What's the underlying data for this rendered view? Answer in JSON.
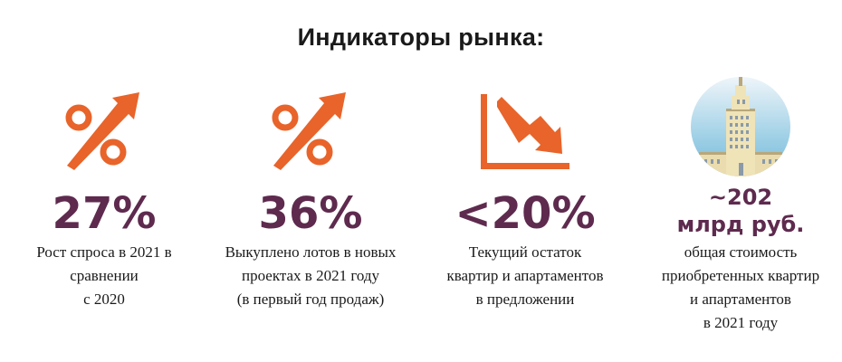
{
  "title": "Индикаторы  рынка:",
  "colors": {
    "accent": "#e8642a",
    "value": "#5e2a4e"
  },
  "indicators": [
    {
      "icon": "percent-up-arrow-icon",
      "value": "27%",
      "desc": [
        "Рост спроса в 2021 в",
        "сравнении",
        "с 2020"
      ]
    },
    {
      "icon": "percent-up-arrow-icon",
      "value": "36%",
      "desc": [
        "Выкуплено лотов в новых",
        "проектах в 2021 году",
        "(в первый год продаж)"
      ]
    },
    {
      "icon": "chart-down-arrow-icon",
      "value": "<20%",
      "desc": [
        "Текущий остаток",
        "квартир и апартаментов",
        "в предложении"
      ]
    },
    {
      "icon": "building-icon",
      "value_line1": "~202",
      "value_line2": "млрд руб.",
      "desc": [
        "общая стоимость",
        "приобретенных квартир",
        "и апартаментов",
        "в 2021 году"
      ]
    }
  ]
}
